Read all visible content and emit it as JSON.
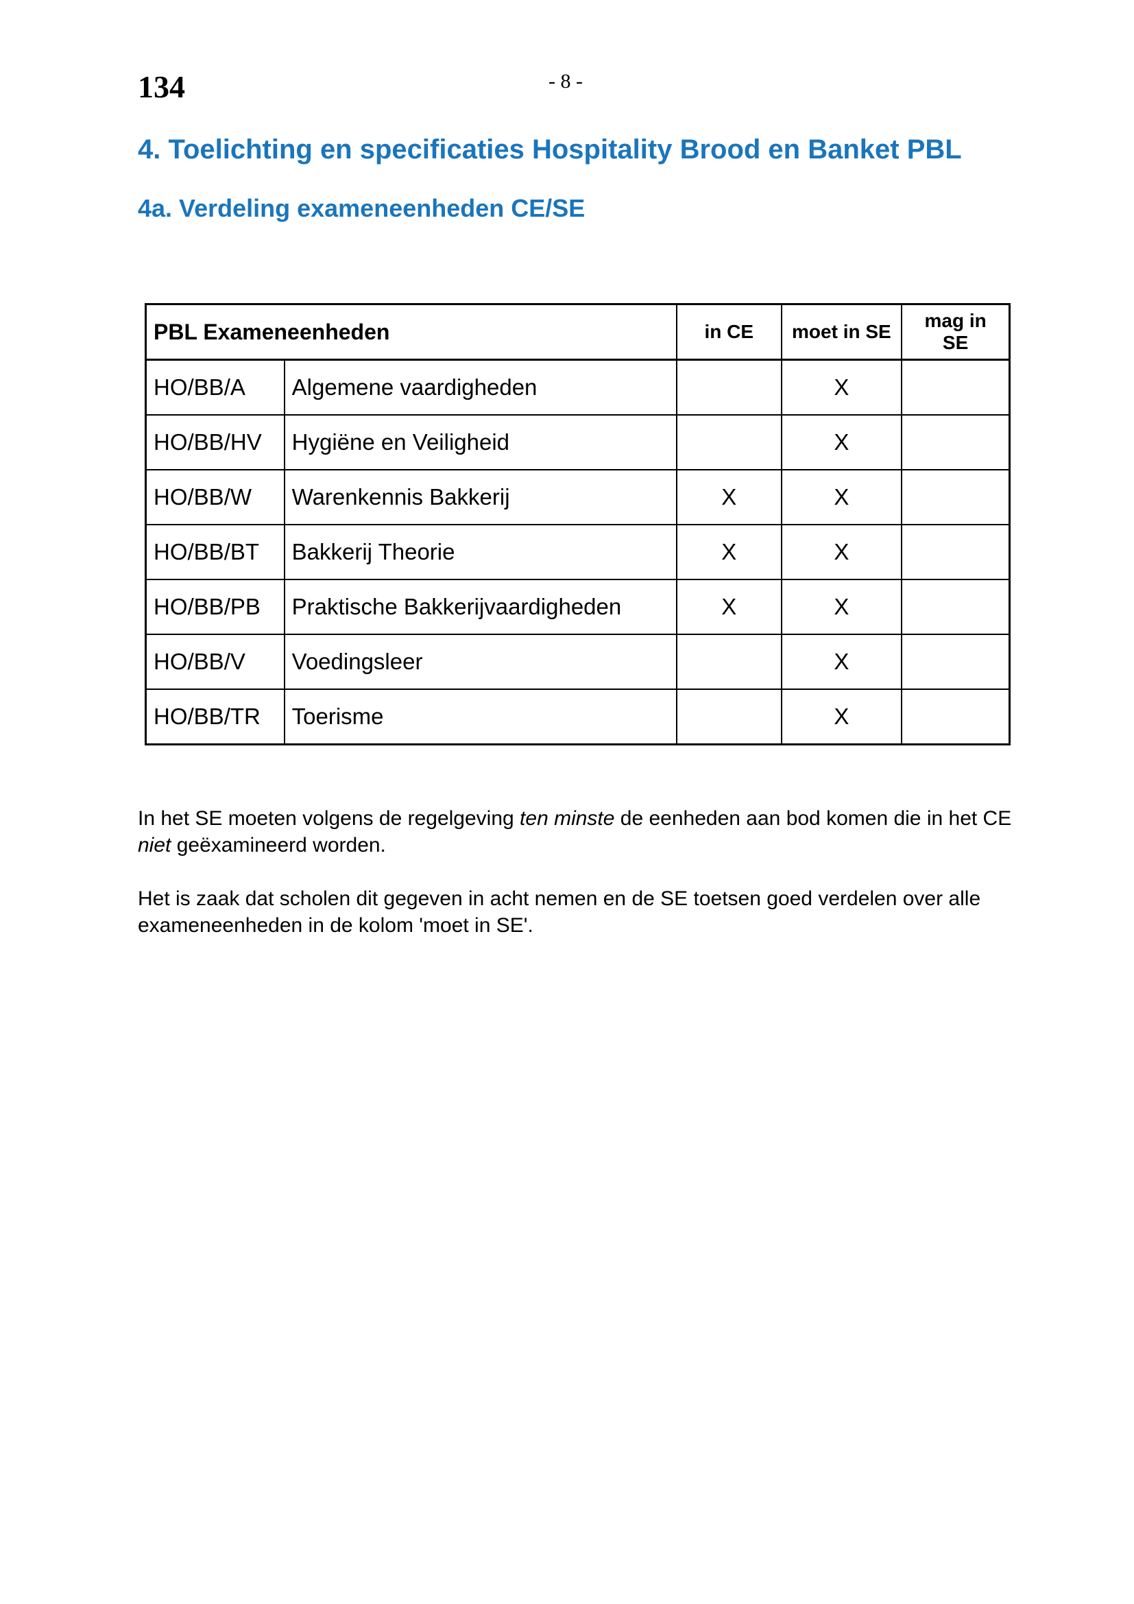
{
  "header": {
    "page_number_left": "134",
    "page_number_center": "- 8 -"
  },
  "headings": {
    "h1": "4.  Toelichting en specificaties Hospitality Brood en Banket PBL",
    "h2": "4a. Verdeling exameneenheden CE/SE"
  },
  "table": {
    "headers": [
      "PBL Exameneenheden",
      "in CE",
      "moet in SE",
      "mag in SE"
    ],
    "rows": [
      {
        "code": "HO/BB/A",
        "name": "Algemene vaardigheden",
        "in_ce": "",
        "moet_se": "X",
        "mag_se": ""
      },
      {
        "code": "HO/BB/HV",
        "name": "Hygiëne en Veiligheid",
        "in_ce": "",
        "moet_se": "X",
        "mag_se": ""
      },
      {
        "code": "HO/BB/W",
        "name": "Warenkennis Bakkerij",
        "in_ce": "X",
        "moet_se": "X",
        "mag_se": ""
      },
      {
        "code": "HO/BB/BT",
        "name": "Bakkerij Theorie",
        "in_ce": "X",
        "moet_se": "X",
        "mag_se": ""
      },
      {
        "code": "HO/BB/PB",
        "name": "Praktische Bakkerijvaardigheden",
        "in_ce": "X",
        "moet_se": "X",
        "mag_se": ""
      },
      {
        "code": "HO/BB/V",
        "name": "Voedingsleer",
        "in_ce": "",
        "moet_se": "X",
        "mag_se": ""
      },
      {
        "code": "HO/BB/TR",
        "name": "Toerisme",
        "in_ce": "",
        "moet_se": "X",
        "mag_se": ""
      }
    ]
  },
  "paragraphs": {
    "p1": {
      "a": "In het SE moeten volgens de regelgeving ",
      "b": "ten minste",
      "c": " de eenheden aan bod komen die in het CE ",
      "d": "niet",
      "e": " geëxamineerd worden."
    },
    "p2": "Het is zaak dat scholen dit gegeven in acht nemen en de SE toetsen goed verdelen over alle exameneenheden in de kolom 'moet in SE'."
  },
  "colors": {
    "heading": "#1a75bc"
  }
}
